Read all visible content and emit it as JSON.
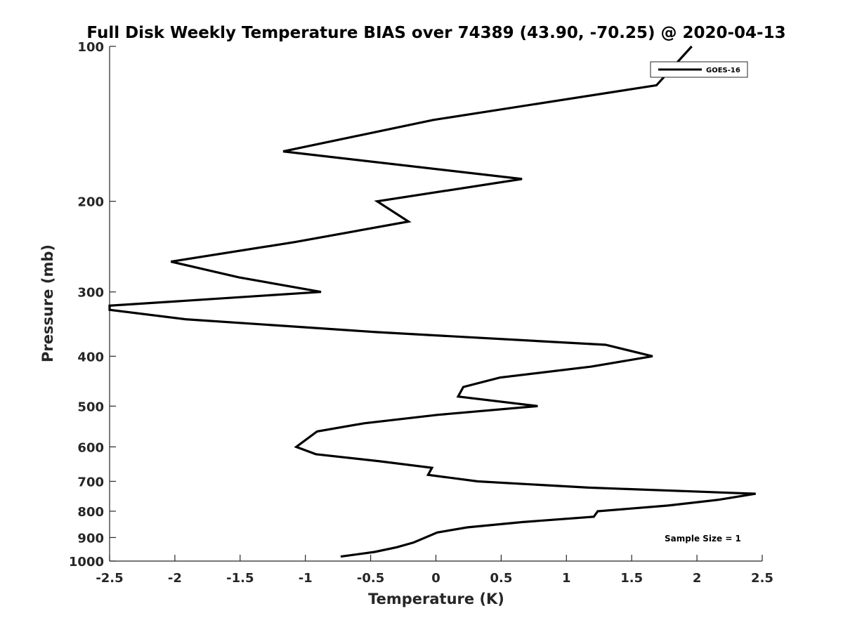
{
  "chart_data": {
    "type": "line",
    "title": "Full Disk Weekly Temperature BIAS over 74389 (43.90, -70.25) @ 2020-04-13",
    "xlabel": "Temperature (K)",
    "ylabel": "Pressure (mb)",
    "xlim": [
      -2.5,
      2.5
    ],
    "ylim": [
      100,
      1000
    ],
    "yscale": "log",
    "yreversed": true,
    "x_ticks": [
      -2.5,
      -2,
      -1.5,
      -1,
      -0.5,
      0,
      0.5,
      1,
      1.5,
      2,
      2.5
    ],
    "x_tick_labels": [
      "-2.5",
      "-2",
      "-1.5",
      "-1",
      "-0.5",
      "0",
      "0.5",
      "1",
      "1.5",
      "2",
      "2.5"
    ],
    "y_ticks": [
      100,
      200,
      300,
      400,
      500,
      600,
      700,
      800,
      900,
      1000
    ],
    "y_tick_labels": [
      "100",
      "200",
      "300",
      "400",
      "500",
      "600",
      "700",
      "800",
      "900",
      "1000"
    ],
    "grid": false,
    "legend": {
      "position": "top-right",
      "entries": [
        "GOES-16"
      ]
    },
    "annotation": "Sample Size = 1",
    "series": [
      {
        "name": "GOES-16",
        "color": "#000000",
        "points": [
          {
            "x": 1.96,
            "y": 100
          },
          {
            "x": 1.69,
            "y": 119
          },
          {
            "x": -0.02,
            "y": 139
          },
          {
            "x": -1.17,
            "y": 160
          },
          {
            "x": 0.66,
            "y": 181
          },
          {
            "x": -0.45,
            "y": 200
          },
          {
            "x": -0.21,
            "y": 219
          },
          {
            "x": -1.08,
            "y": 240
          },
          {
            "x": -2.03,
            "y": 262
          },
          {
            "x": -1.51,
            "y": 281
          },
          {
            "x": -0.88,
            "y": 300
          },
          {
            "x": -2.5,
            "y": 319
          },
          {
            "x": -2.5,
            "y": 325
          },
          {
            "x": -1.92,
            "y": 339
          },
          {
            "x": -0.46,
            "y": 359
          },
          {
            "x": 1.3,
            "y": 380
          },
          {
            "x": 1.66,
            "y": 400
          },
          {
            "x": 1.19,
            "y": 419
          },
          {
            "x": 0.49,
            "y": 440
          },
          {
            "x": 0.21,
            "y": 459
          },
          {
            "x": 0.17,
            "y": 479
          },
          {
            "x": 0.78,
            "y": 500
          },
          {
            "x": 0.01,
            "y": 520
          },
          {
            "x": -0.55,
            "y": 540
          },
          {
            "x": -0.91,
            "y": 560
          },
          {
            "x": -1.07,
            "y": 600
          },
          {
            "x": -0.92,
            "y": 620
          },
          {
            "x": -0.43,
            "y": 640
          },
          {
            "x": -0.03,
            "y": 659
          },
          {
            "x": -0.06,
            "y": 680
          },
          {
            "x": 0.32,
            "y": 700
          },
          {
            "x": 1.17,
            "y": 720
          },
          {
            "x": 2.45,
            "y": 740
          },
          {
            "x": 2.17,
            "y": 760
          },
          {
            "x": 1.78,
            "y": 780
          },
          {
            "x": 1.24,
            "y": 800
          },
          {
            "x": 1.21,
            "y": 820
          },
          {
            "x": 0.66,
            "y": 840
          },
          {
            "x": 0.24,
            "y": 860
          },
          {
            "x": 0.01,
            "y": 880
          },
          {
            "x": -0.17,
            "y": 920
          },
          {
            "x": -0.3,
            "y": 940
          },
          {
            "x": -0.47,
            "y": 960
          },
          {
            "x": -0.73,
            "y": 980
          }
        ]
      }
    ]
  }
}
